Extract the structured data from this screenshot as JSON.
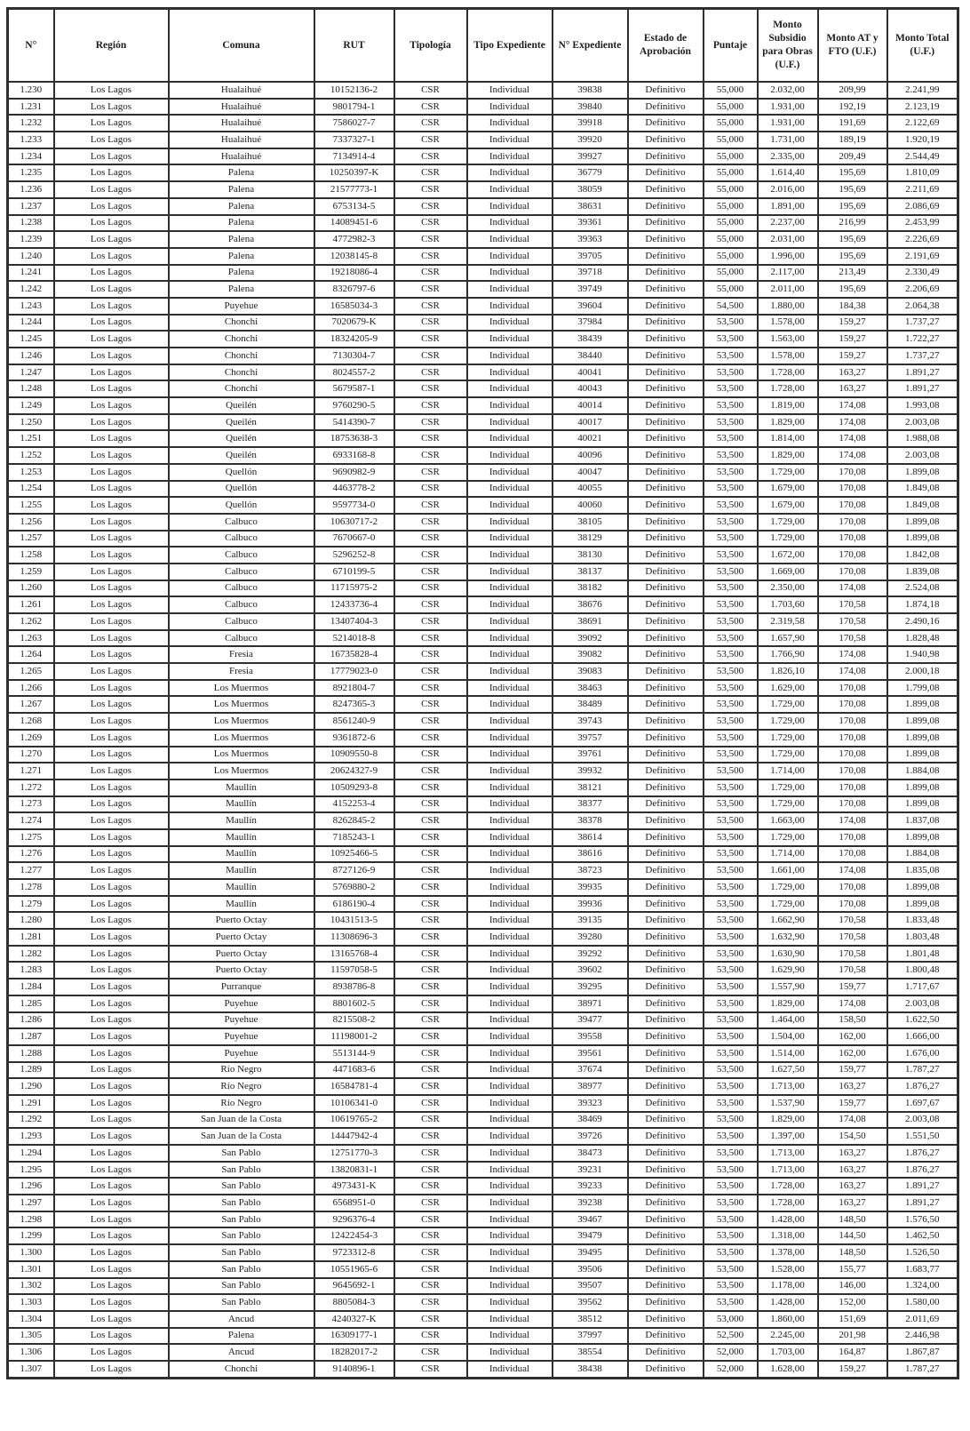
{
  "table": {
    "columns": [
      "N°",
      "Región",
      "Comuna",
      "RUT",
      "Tipología",
      "Tipo Expediente",
      "N° Expediente",
      "Estado de Aprobación",
      "Puntaje",
      "Monto Subsidio para Obras (U.F.)",
      "Monto AT y FTO (U.F.)",
      "Monto Total (U.F.)"
    ],
    "constants": {
      "region": "Los Lagos",
      "tipologia": "CSR",
      "tipo_expediente": "Individual",
      "estado_aprobacion": "Definitivo"
    },
    "rows": [
      [
        "1.230",
        "Hualaihué",
        "10152136-2",
        "39838",
        "55,000",
        "2.032,00",
        "209,99",
        "2.241,99"
      ],
      [
        "1.231",
        "Hualaihué",
        "9801794-1",
        "39840",
        "55,000",
        "1.931,00",
        "192,19",
        "2.123,19"
      ],
      [
        "1.232",
        "Hualaihué",
        "7586027-7",
        "39918",
        "55,000",
        "1.931,00",
        "191,69",
        "2.122,69"
      ],
      [
        "1.233",
        "Hualaihué",
        "7337327-1",
        "39920",
        "55,000",
        "1.731,00",
        "189,19",
        "1.920,19"
      ],
      [
        "1.234",
        "Hualaihué",
        "7134914-4",
        "39927",
        "55,000",
        "2.335,00",
        "209,49",
        "2.544,49"
      ],
      [
        "1.235",
        "Palena",
        "10250397-K",
        "36779",
        "55,000",
        "1.614,40",
        "195,69",
        "1.810,09"
      ],
      [
        "1.236",
        "Palena",
        "21577773-1",
        "38059",
        "55,000",
        "2.016,00",
        "195,69",
        "2.211,69"
      ],
      [
        "1.237",
        "Palena",
        "6753134-5",
        "38631",
        "55,000",
        "1.891,00",
        "195,69",
        "2.086,69"
      ],
      [
        "1.238",
        "Palena",
        "14089451-6",
        "39361",
        "55,000",
        "2.237,00",
        "216,99",
        "2.453,99"
      ],
      [
        "1.239",
        "Palena",
        "4772982-3",
        "39363",
        "55,000",
        "2.031,00",
        "195,69",
        "2.226,69"
      ],
      [
        "1.240",
        "Palena",
        "12038145-8",
        "39705",
        "55,000",
        "1.996,00",
        "195,69",
        "2.191,69"
      ],
      [
        "1.241",
        "Palena",
        "19218086-4",
        "39718",
        "55,000",
        "2.117,00",
        "213,49",
        "2.330,49"
      ],
      [
        "1.242",
        "Palena",
        "8326797-6",
        "39749",
        "55,000",
        "2.011,00",
        "195,69",
        "2.206,69"
      ],
      [
        "1.243",
        "Puyehue",
        "16585034-3",
        "39604",
        "54,500",
        "1.880,00",
        "184,38",
        "2.064,38"
      ],
      [
        "1.244",
        "Chonchi",
        "7020679-K",
        "37984",
        "53,500",
        "1.578,00",
        "159,27",
        "1.737,27"
      ],
      [
        "1.245",
        "Chonchi",
        "18324205-9",
        "38439",
        "53,500",
        "1.563,00",
        "159,27",
        "1.722,27"
      ],
      [
        "1.246",
        "Chonchi",
        "7130304-7",
        "38440",
        "53,500",
        "1.578,00",
        "159,27",
        "1.737,27"
      ],
      [
        "1.247",
        "Chonchi",
        "8024557-2",
        "40041",
        "53,500",
        "1.728,00",
        "163,27",
        "1.891,27"
      ],
      [
        "1.248",
        "Chonchi",
        "5679587-1",
        "40043",
        "53,500",
        "1.728,00",
        "163,27",
        "1.891,27"
      ],
      [
        "1.249",
        "Queilén",
        "9760290-5",
        "40014",
        "53,500",
        "1.819,00",
        "174,08",
        "1.993,08"
      ],
      [
        "1.250",
        "Queilén",
        "5414390-7",
        "40017",
        "53,500",
        "1.829,00",
        "174,08",
        "2.003,08"
      ],
      [
        "1.251",
        "Queilén",
        "18753638-3",
        "40021",
        "53,500",
        "1.814,00",
        "174,08",
        "1.988,08"
      ],
      [
        "1.252",
        "Queilén",
        "6933168-8",
        "40096",
        "53,500",
        "1.829,00",
        "174,08",
        "2.003,08"
      ],
      [
        "1.253",
        "Quellón",
        "9690982-9",
        "40047",
        "53,500",
        "1.729,00",
        "170,08",
        "1.899,08"
      ],
      [
        "1.254",
        "Quellón",
        "4463778-2",
        "40055",
        "53,500",
        "1.679,00",
        "170,08",
        "1.849,08"
      ],
      [
        "1.255",
        "Quellón",
        "9597734-0",
        "40060",
        "53,500",
        "1.679,00",
        "170,08",
        "1.849,08"
      ],
      [
        "1.256",
        "Calbuco",
        "10630717-2",
        "38105",
        "53,500",
        "1.729,00",
        "170,08",
        "1.899,08"
      ],
      [
        "1.257",
        "Calbuco",
        "7670667-0",
        "38129",
        "53,500",
        "1.729,00",
        "170,08",
        "1.899,08"
      ],
      [
        "1.258",
        "Calbuco",
        "5296252-8",
        "38130",
        "53,500",
        "1.672,00",
        "170,08",
        "1.842,08"
      ],
      [
        "1.259",
        "Calbuco",
        "6710199-5",
        "38137",
        "53,500",
        "1.669,00",
        "170,08",
        "1.839,08"
      ],
      [
        "1.260",
        "Calbuco",
        "11715975-2",
        "38182",
        "53,500",
        "2.350,00",
        "174,08",
        "2.524,08"
      ],
      [
        "1.261",
        "Calbuco",
        "12433736-4",
        "38676",
        "53,500",
        "1.703,60",
        "170,58",
        "1.874,18"
      ],
      [
        "1.262",
        "Calbuco",
        "13407404-3",
        "38691",
        "53,500",
        "2.319,58",
        "170,58",
        "2.490,16"
      ],
      [
        "1.263",
        "Calbuco",
        "5214018-8",
        "39092",
        "53,500",
        "1.657,90",
        "170,58",
        "1.828,48"
      ],
      [
        "1.264",
        "Fresia",
        "16735828-4",
        "39082",
        "53,500",
        "1.766,90",
        "174,08",
        "1.940,98"
      ],
      [
        "1.265",
        "Fresia",
        "17779023-0",
        "39083",
        "53,500",
        "1.826,10",
        "174,08",
        "2.000,18"
      ],
      [
        "1.266",
        "Los Muermos",
        "8921804-7",
        "38463",
        "53,500",
        "1.629,00",
        "170,08",
        "1.799,08"
      ],
      [
        "1.267",
        "Los Muermos",
        "8247365-3",
        "38489",
        "53,500",
        "1.729,00",
        "170,08",
        "1.899,08"
      ],
      [
        "1.268",
        "Los Muermos",
        "8561240-9",
        "39743",
        "53,500",
        "1.729,00",
        "170,08",
        "1.899,08"
      ],
      [
        "1.269",
        "Los Muermos",
        "9361872-6",
        "39757",
        "53,500",
        "1.729,00",
        "170,08",
        "1.899,08"
      ],
      [
        "1.270",
        "Los Muermos",
        "10909550-8",
        "39761",
        "53,500",
        "1.729,00",
        "170,08",
        "1.899,08"
      ],
      [
        "1.271",
        "Los Muermos",
        "20624327-9",
        "39932",
        "53,500",
        "1.714,00",
        "170,08",
        "1.884,08"
      ],
      [
        "1.272",
        "Maullín",
        "10509293-8",
        "38121",
        "53,500",
        "1.729,00",
        "170,08",
        "1.899,08"
      ],
      [
        "1.273",
        "Maullín",
        "4152253-4",
        "38377",
        "53,500",
        "1.729,00",
        "170,08",
        "1.899,08"
      ],
      [
        "1.274",
        "Maullín",
        "8262845-2",
        "38378",
        "53,500",
        "1.663,00",
        "174,08",
        "1.837,08"
      ],
      [
        "1.275",
        "Maullín",
        "7185243-1",
        "38614",
        "53,500",
        "1.729,00",
        "170,08",
        "1.899,08"
      ],
      [
        "1.276",
        "Maullín",
        "10925466-5",
        "38616",
        "53,500",
        "1.714,00",
        "170,08",
        "1.884,08"
      ],
      [
        "1.277",
        "Maullín",
        "8727126-9",
        "38723",
        "53,500",
        "1.661,00",
        "174,08",
        "1.835,08"
      ],
      [
        "1.278",
        "Maullín",
        "5769880-2",
        "39935",
        "53,500",
        "1.729,00",
        "170,08",
        "1.899,08"
      ],
      [
        "1.279",
        "Maullín",
        "6186190-4",
        "39936",
        "53,500",
        "1.729,00",
        "170,08",
        "1.899,08"
      ],
      [
        "1.280",
        "Puerto Octay",
        "10431513-5",
        "39135",
        "53,500",
        "1.662,90",
        "170,58",
        "1.833,48"
      ],
      [
        "1.281",
        "Puerto Octay",
        "11308696-3",
        "39280",
        "53,500",
        "1.632,90",
        "170,58",
        "1.803,48"
      ],
      [
        "1.282",
        "Puerto Octay",
        "13165768-4",
        "39292",
        "53,500",
        "1.630,90",
        "170,58",
        "1.801,48"
      ],
      [
        "1.283",
        "Puerto Octay",
        "11597058-5",
        "39602",
        "53,500",
        "1.629,90",
        "170,58",
        "1.800,48"
      ],
      [
        "1.284",
        "Purranque",
        "8938786-8",
        "39295",
        "53,500",
        "1.557,90",
        "159,77",
        "1.717,67"
      ],
      [
        "1.285",
        "Puyehue",
        "8801602-5",
        "38971",
        "53,500",
        "1.829,00",
        "174,08",
        "2.003,08"
      ],
      [
        "1.286",
        "Puyehue",
        "8215508-2",
        "39477",
        "53,500",
        "1.464,00",
        "158,50",
        "1.622,50"
      ],
      [
        "1.287",
        "Puyehue",
        "11198001-2",
        "39558",
        "53,500",
        "1.504,00",
        "162,00",
        "1.666,00"
      ],
      [
        "1.288",
        "Puyehue",
        "5513144-9",
        "39561",
        "53,500",
        "1.514,00",
        "162,00",
        "1.676,00"
      ],
      [
        "1.289",
        "Río Negro",
        "4471683-6",
        "37674",
        "53,500",
        "1.627,50",
        "159,77",
        "1.787,27"
      ],
      [
        "1.290",
        "Río Negro",
        "16584781-4",
        "38977",
        "53,500",
        "1.713,00",
        "163,27",
        "1.876,27"
      ],
      [
        "1.291",
        "Río Negro",
        "10106341-0",
        "39323",
        "53,500",
        "1.537,90",
        "159,77",
        "1.697,67"
      ],
      [
        "1.292",
        "San Juan de la Costa",
        "10619765-2",
        "38469",
        "53,500",
        "1.829,00",
        "174,08",
        "2.003,08"
      ],
      [
        "1.293",
        "San Juan de la Costa",
        "14447942-4",
        "39726",
        "53,500",
        "1.397,00",
        "154,50",
        "1.551,50"
      ],
      [
        "1.294",
        "San Pablo",
        "12751770-3",
        "38473",
        "53,500",
        "1.713,00",
        "163,27",
        "1.876,27"
      ],
      [
        "1.295",
        "San Pablo",
        "13820831-1",
        "39231",
        "53,500",
        "1.713,00",
        "163,27",
        "1.876,27"
      ],
      [
        "1.296",
        "San Pablo",
        "4973431-K",
        "39233",
        "53,500",
        "1.728,00",
        "163,27",
        "1.891,27"
      ],
      [
        "1.297",
        "San Pablo",
        "6568951-0",
        "39238",
        "53,500",
        "1.728,00",
        "163,27",
        "1.891,27"
      ],
      [
        "1.298",
        "San Pablo",
        "9296376-4",
        "39467",
        "53,500",
        "1.428,00",
        "148,50",
        "1.576,50"
      ],
      [
        "1.299",
        "San Pablo",
        "12422454-3",
        "39479",
        "53,500",
        "1.318,00",
        "144,50",
        "1.462,50"
      ],
      [
        "1.300",
        "San Pablo",
        "9723312-8",
        "39495",
        "53,500",
        "1.378,00",
        "148,50",
        "1.526,50"
      ],
      [
        "1.301",
        "San Pablo",
        "10551965-6",
        "39506",
        "53,500",
        "1.528,00",
        "155,77",
        "1.683,77"
      ],
      [
        "1.302",
        "San Pablo",
        "9645692-1",
        "39507",
        "53,500",
        "1.178,00",
        "146,00",
        "1.324,00"
      ],
      [
        "1.303",
        "San Pablo",
        "8805084-3",
        "39562",
        "53,500",
        "1.428,00",
        "152,00",
        "1.580,00"
      ],
      [
        "1.304",
        "Ancud",
        "4240327-K",
        "38512",
        "53,000",
        "1.860,00",
        "151,69",
        "2.011,69"
      ],
      [
        "1.305",
        "Palena",
        "16309177-1",
        "37997",
        "52,500",
        "2.245,00",
        "201,98",
        "2.446,98"
      ],
      [
        "1.306",
        "Ancud",
        "18282017-2",
        "38554",
        "52,000",
        "1.703,00",
        "164,87",
        "1.867,87"
      ],
      [
        "1.307",
        "Chonchi",
        "9140896-1",
        "38438",
        "52,000",
        "1.628,00",
        "159,27",
        "1.787,27"
      ]
    ]
  },
  "colors": {
    "border": "#2f2f2f",
    "text": "#1c1c1c",
    "background": "#ffffff"
  }
}
